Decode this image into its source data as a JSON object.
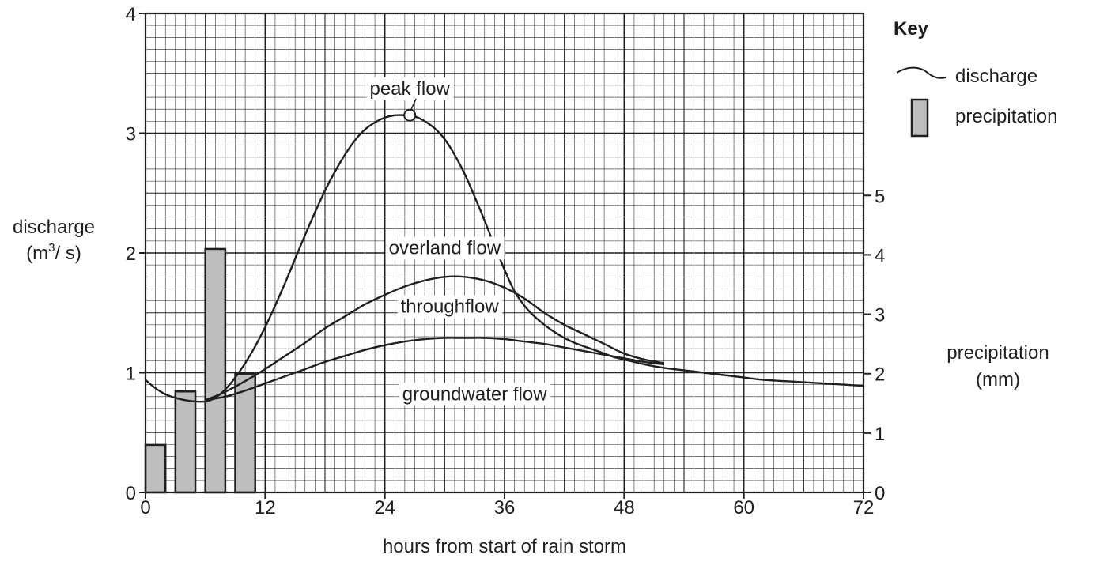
{
  "chart_data": {
    "type": "line",
    "xlabel": "hours from start of rain storm",
    "ylabel": "discharge",
    "ylabel_unit_prefix": "(m",
    "ylabel_unit_sup": "3",
    "ylabel_unit_suffix": "/ s)",
    "y2label": "precipitation",
    "y2label_unit": "(mm)",
    "xlim": [
      0,
      72
    ],
    "ylim": [
      0,
      4
    ],
    "y2lim": [
      0,
      5
    ],
    "x_ticks": [
      "0",
      "12",
      "24",
      "36",
      "48",
      "60",
      "72"
    ],
    "y_ticks": [
      "0",
      "1",
      "2",
      "3",
      "4"
    ],
    "y2_ticks": [
      "0",
      "1",
      "2",
      "3",
      "4",
      "5"
    ],
    "grid": true,
    "legend": {
      "title": "Key",
      "placement": "top-right",
      "entries": [
        {
          "label": "discharge",
          "kind": "line"
        },
        {
          "label": "precipitation",
          "kind": "bar"
        }
      ]
    },
    "series": [
      {
        "name": "discharge",
        "kind": "line",
        "points": [
          [
            0,
            0.94
          ],
          [
            1,
            0.87
          ],
          [
            2,
            0.82
          ],
          [
            3,
            0.79
          ],
          [
            4,
            0.77
          ],
          [
            5,
            0.76
          ],
          [
            6,
            0.76
          ],
          [
            7,
            0.79
          ],
          [
            8,
            0.86
          ],
          [
            9,
            0.96
          ],
          [
            10,
            1.08
          ],
          [
            11,
            1.22
          ],
          [
            12,
            1.38
          ],
          [
            13,
            1.56
          ],
          [
            14,
            1.75
          ],
          [
            15,
            1.95
          ],
          [
            16,
            2.15
          ],
          [
            17,
            2.34
          ],
          [
            18,
            2.52
          ],
          [
            19,
            2.68
          ],
          [
            20,
            2.82
          ],
          [
            21,
            2.94
          ],
          [
            22,
            3.03
          ],
          [
            23,
            3.09
          ],
          [
            24,
            3.13
          ],
          [
            25,
            3.15
          ],
          [
            26,
            3.15
          ],
          [
            27,
            3.14
          ],
          [
            28,
            3.1
          ],
          [
            29,
            3.04
          ],
          [
            30,
            2.95
          ],
          [
            31,
            2.82
          ],
          [
            32,
            2.66
          ],
          [
            33,
            2.47
          ],
          [
            34,
            2.27
          ],
          [
            35,
            2.06
          ],
          [
            36,
            1.86
          ],
          [
            37,
            1.68
          ],
          [
            38,
            1.56
          ],
          [
            39,
            1.47
          ],
          [
            40,
            1.4
          ],
          [
            41,
            1.34
          ],
          [
            42,
            1.29
          ],
          [
            43,
            1.25
          ],
          [
            44,
            1.22
          ],
          [
            45,
            1.19
          ],
          [
            46,
            1.16
          ],
          [
            47,
            1.13
          ],
          [
            48,
            1.11
          ],
          [
            50,
            1.07
          ],
          [
            52,
            1.04
          ],
          [
            54,
            1.02
          ],
          [
            56,
            1.0
          ],
          [
            58,
            0.98
          ],
          [
            60,
            0.96
          ],
          [
            62,
            0.94
          ],
          [
            64,
            0.93
          ],
          [
            66,
            0.92
          ],
          [
            68,
            0.91
          ],
          [
            70,
            0.9
          ],
          [
            72,
            0.89
          ]
        ]
      },
      {
        "name": "throughflow boundary",
        "kind": "line",
        "points": [
          [
            6,
            0.77
          ],
          [
            8,
            0.84
          ],
          [
            10,
            0.93
          ],
          [
            12,
            1.03
          ],
          [
            14,
            1.14
          ],
          [
            16,
            1.25
          ],
          [
            18,
            1.37
          ],
          [
            20,
            1.47
          ],
          [
            22,
            1.57
          ],
          [
            24,
            1.65
          ],
          [
            26,
            1.72
          ],
          [
            28,
            1.77
          ],
          [
            30,
            1.8
          ],
          [
            32,
            1.8
          ],
          [
            34,
            1.77
          ],
          [
            36,
            1.71
          ],
          [
            38,
            1.62
          ],
          [
            40,
            1.5
          ],
          [
            42,
            1.4
          ],
          [
            44,
            1.32
          ],
          [
            46,
            1.24
          ],
          [
            48,
            1.16
          ],
          [
            50,
            1.11
          ],
          [
            52,
            1.08
          ]
        ]
      },
      {
        "name": "groundwater boundary",
        "kind": "line",
        "points": [
          [
            6,
            0.77
          ],
          [
            8,
            0.8
          ],
          [
            10,
            0.85
          ],
          [
            12,
            0.91
          ],
          [
            14,
            0.97
          ],
          [
            16,
            1.03
          ],
          [
            18,
            1.09
          ],
          [
            20,
            1.14
          ],
          [
            22,
            1.19
          ],
          [
            24,
            1.23
          ],
          [
            26,
            1.26
          ],
          [
            28,
            1.28
          ],
          [
            30,
            1.29
          ],
          [
            32,
            1.29
          ],
          [
            34,
            1.29
          ],
          [
            36,
            1.28
          ],
          [
            38,
            1.26
          ],
          [
            40,
            1.24
          ],
          [
            42,
            1.21
          ],
          [
            44,
            1.18
          ],
          [
            46,
            1.15
          ],
          [
            48,
            1.12
          ],
          [
            50,
            1.09
          ],
          [
            52,
            1.07
          ]
        ]
      }
    ],
    "bars": {
      "name": "precipitation",
      "axis": "y2",
      "x_centers": [
        1,
        4,
        7,
        10
      ],
      "width_hours": 2,
      "values": [
        0.8,
        1.7,
        4.1,
        2.0
      ],
      "fill": "#bcbec0"
    },
    "annotations": [
      {
        "id": "peak",
        "text": "peak flow",
        "x": 26.5,
        "y": 3.38,
        "marker": [
          26.5,
          3.15
        ]
      },
      {
        "id": "overland",
        "text": "overland flow",
        "x": 30,
        "y": 2.05
      },
      {
        "id": "through",
        "text": "throughflow",
        "x": 30.5,
        "y": 1.56
      },
      {
        "id": "ground",
        "text": "groundwater flow",
        "x": 33,
        "y": 0.83
      }
    ],
    "colors": {
      "grid_minor": "#231f20",
      "line": "#231f20",
      "bar": "#bcbec0"
    }
  }
}
